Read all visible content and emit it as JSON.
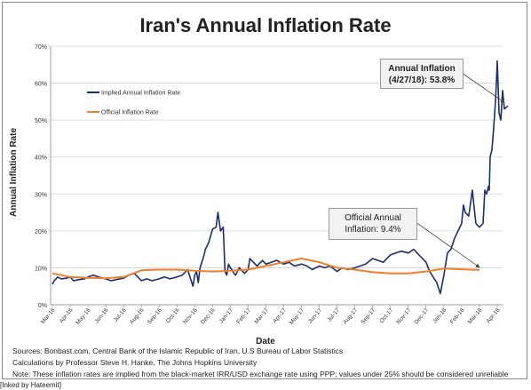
{
  "chart_data": {
    "type": "line",
    "title": "Iran's Annual Inflation Rate",
    "xlabel": "Date",
    "ylabel": "Annual Inflation Rate",
    "ylim": [
      0,
      70
    ],
    "yticks": [
      "0%",
      "10%",
      "20%",
      "30%",
      "40%",
      "50%",
      "60%",
      "70%"
    ],
    "grid": true,
    "legend_position": "top-left",
    "x_tick_labels": [
      "Mar-16",
      "Apr-16",
      "May-16",
      "Jun-16",
      "Jul-16",
      "Aug-16",
      "Sep-16",
      "Oct-16",
      "Nov-16",
      "Dec-16",
      "Jan-17",
      "Feb-17",
      "Mar-17",
      "Apr-17",
      "May-17",
      "Jun-17",
      "Jul-17",
      "Aug-17",
      "Sep-17",
      "Oct-17",
      "Nov-17",
      "Dec-17",
      "Jan-18",
      "Feb-18",
      "Mar-18",
      "Apr-18"
    ],
    "series": [
      {
        "name": "Implied Annual Inflation Rate",
        "color": "#1f2d6b",
        "x": [
          0,
          0.1,
          0.3,
          0.5,
          0.8,
          1.0,
          1.2,
          1.5,
          1.8,
          2.0,
          2.3,
          2.6,
          3.0,
          3.3,
          3.6,
          4.0,
          4.3,
          4.6,
          5.0,
          5.3,
          5.6,
          6.0,
          6.3,
          6.6,
          7.0,
          7.3,
          7.6,
          7.9,
          8.0,
          8.1,
          8.2,
          8.3,
          8.5,
          8.6,
          8.8,
          9.0,
          9.2,
          9.3,
          9.45,
          9.6,
          9.7,
          9.8,
          9.9,
          10.0,
          10.1,
          10.2,
          10.3,
          10.5,
          10.8,
          11.0,
          11.1,
          11.3,
          11.5,
          11.8,
          12.0,
          12.3,
          12.6,
          13.0,
          13.3,
          13.6,
          14.0,
          14.3,
          14.6,
          15.0,
          15.3,
          15.6,
          16.0,
          16.3,
          16.6,
          17.0,
          17.3,
          17.6,
          18.0,
          18.3,
          18.6,
          19.0,
          19.3,
          19.6,
          20.0,
          20.3,
          20.6,
          21.0,
          21.2,
          21.4,
          21.6,
          21.8,
          22.0,
          22.2,
          22.4,
          22.6,
          22.8,
          23.0,
          23.1,
          23.2,
          23.4,
          23.6,
          23.8,
          24.0,
          24.2,
          24.3,
          24.4,
          24.5,
          24.55,
          24.6,
          24.7,
          24.8,
          24.9,
          24.95,
          25.0,
          25.1,
          25.2,
          25.3,
          25.4,
          25.6
        ],
        "values": [
          5.5,
          6.5,
          7.5,
          7.0,
          7.2,
          7.5,
          6.5,
          6.8,
          7.0,
          7.5,
          8.0,
          7.5,
          7.0,
          6.5,
          6.8,
          7.2,
          8.0,
          8.5,
          6.5,
          7.0,
          6.5,
          7.0,
          7.5,
          7.0,
          7.5,
          8.0,
          9.5,
          5.0,
          8.0,
          9.0,
          6.0,
          10.0,
          13.0,
          15.0,
          17.0,
          20.5,
          21.0,
          25.0,
          20.0,
          21.0,
          9.0,
          8.0,
          11.0,
          10.0,
          9.5,
          8.5,
          8.0,
          10.0,
          8.5,
          9.5,
          12.5,
          11.5,
          10.5,
          12.0,
          11.0,
          11.5,
          12.0,
          11.0,
          11.5,
          10.5,
          11.0,
          10.5,
          9.5,
          10.5,
          10.0,
          10.5,
          9.0,
          10.0,
          9.5,
          10.0,
          10.5,
          11.0,
          12.5,
          12.0,
          11.5,
          13.5,
          14.0,
          14.5,
          14.0,
          15.0,
          13.5,
          11.5,
          9.0,
          7.5,
          6.0,
          3.0,
          8.0,
          14.0,
          15.0,
          18.0,
          20.0,
          22.0,
          27.0,
          25.0,
          24.0,
          31.0,
          22.0,
          21.0,
          22.0,
          31.0,
          30.0,
          32.0,
          31.0,
          40.0,
          42.0,
          48.0,
          55.0,
          60.0,
          66.0,
          52.0,
          50.0,
          58.0,
          53.0,
          53.8
        ]
      },
      {
        "name": "Official Inflation Rate",
        "color": "#ef7f2a",
        "x": [
          0,
          1,
          2,
          3,
          4,
          5,
          6,
          7,
          8,
          9,
          10,
          11,
          12,
          13,
          14,
          15,
          16,
          17,
          18,
          19,
          20,
          21,
          22,
          23,
          24
        ],
        "values": [
          8.5,
          7.5,
          7.3,
          7.2,
          7.5,
          9.3,
          9.5,
          9.5,
          9.2,
          9.0,
          9.2,
          9.5,
          10.5,
          11.5,
          12.5,
          11.5,
          10.0,
          9.5,
          8.8,
          8.5,
          8.5,
          9.0,
          9.8,
          9.6,
          9.4
        ]
      }
    ]
  },
  "annotations": {
    "implied_line1": "Annual Inflation",
    "implied_line2": "(4/27/18): 53.8%",
    "official_line1": "Official Annual",
    "official_line2": "Inflation: 9.4%"
  },
  "sources": {
    "line1": "Sources: Bonbast.com, Central Bank of the Islamic Republic of Iran, U.S Bureau of Labor Statistics",
    "line2": "Calculations by Professor Steve H. Hanke, The Johns Hopkins University",
    "line3": "Note: These inflation rates are implied from the black-market IRR/USD exchange rate using PPP; values under 25% should be considered unreliable"
  },
  "footer": "[Inked by Hateemit]"
}
